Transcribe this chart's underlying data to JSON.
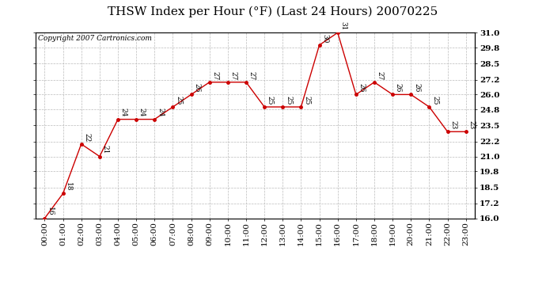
{
  "title": "THSW Index per Hour (°F) (Last 24 Hours) 20070225",
  "copyright": "Copyright 2007 Cartronics.com",
  "hours": [
    "00:00",
    "01:00",
    "02:00",
    "03:00",
    "04:00",
    "05:00",
    "06:00",
    "07:00",
    "08:00",
    "09:00",
    "10:00",
    "11:00",
    "12:00",
    "13:00",
    "14:00",
    "15:00",
    "16:00",
    "17:00",
    "18:00",
    "19:00",
    "20:00",
    "21:00",
    "22:00",
    "23:00"
  ],
  "values": [
    16,
    18,
    22,
    21,
    24,
    24,
    24,
    25,
    26,
    27,
    27,
    27,
    25,
    25,
    25,
    30,
    31,
    26,
    27,
    26,
    26,
    25,
    23,
    23
  ],
  "ylim_min": 16.0,
  "ylim_max": 31.0,
  "yticks": [
    16.0,
    17.2,
    18.5,
    19.8,
    21.0,
    22.2,
    23.5,
    24.8,
    26.0,
    27.2,
    28.5,
    29.8,
    31.0
  ],
  "ytick_labels": [
    "16.0",
    "17.2",
    "18.5",
    "19.8",
    "21.0",
    "22.2",
    "23.5",
    "24.8",
    "26.0",
    "27.2",
    "28.5",
    "29.8",
    "31.0"
  ],
  "line_color": "#cc0000",
  "marker_color": "#cc0000",
  "bg_color": "#ffffff",
  "plot_bg_color": "#ffffff",
  "grid_color": "#bbbbbb",
  "title_fontsize": 11,
  "copyright_fontsize": 6.5,
  "label_fontsize": 6.5,
  "tick_fontsize": 7.5
}
